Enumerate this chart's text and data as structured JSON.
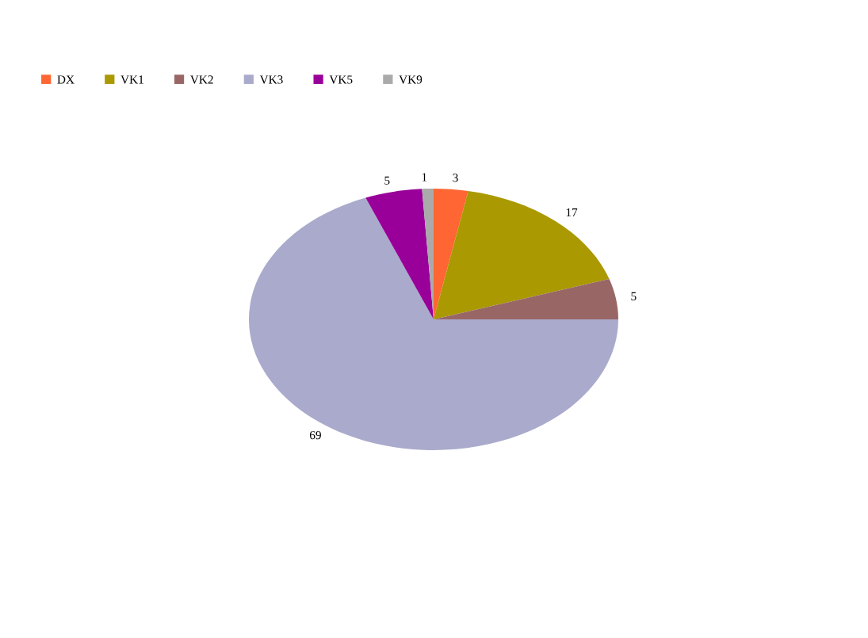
{
  "chart_data": {
    "type": "pie",
    "categories": [
      "DX",
      "VK1",
      "VK2",
      "VK3",
      "VK5",
      "VK9"
    ],
    "values": [
      3,
      17,
      5,
      69,
      5,
      1
    ],
    "colors": [
      "#ff6633",
      "#aa9900",
      "#996666",
      "#aaaacc",
      "#990099",
      "#aaaaaa"
    ],
    "data_labels": true,
    "legend": "top left"
  }
}
